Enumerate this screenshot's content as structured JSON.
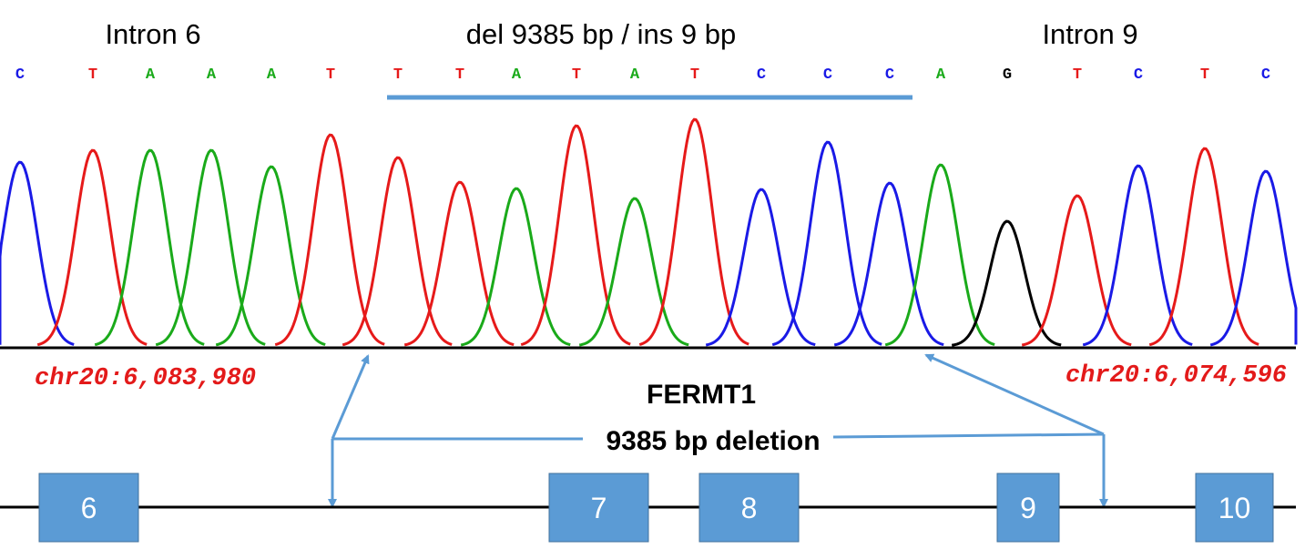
{
  "header": {
    "left": "Intron 6",
    "center": "del 9385 bp / ins 9 bp",
    "right": "Intron 9"
  },
  "bases": [
    "C",
    "T",
    "A",
    "A",
    "A",
    "T",
    "T",
    "T",
    "A",
    "T",
    "A",
    "T",
    "C",
    "C",
    "C",
    "A",
    "G",
    "T",
    "C",
    "T",
    "C"
  ],
  "coordinates": {
    "left": "chr20:6,083,980",
    "right": "chr20:6,074,596"
  },
  "gene": "FERMT1",
  "deletion": "9385 bp deletion",
  "exons": [
    "6",
    "7",
    "8",
    "9",
    "10"
  ]
}
